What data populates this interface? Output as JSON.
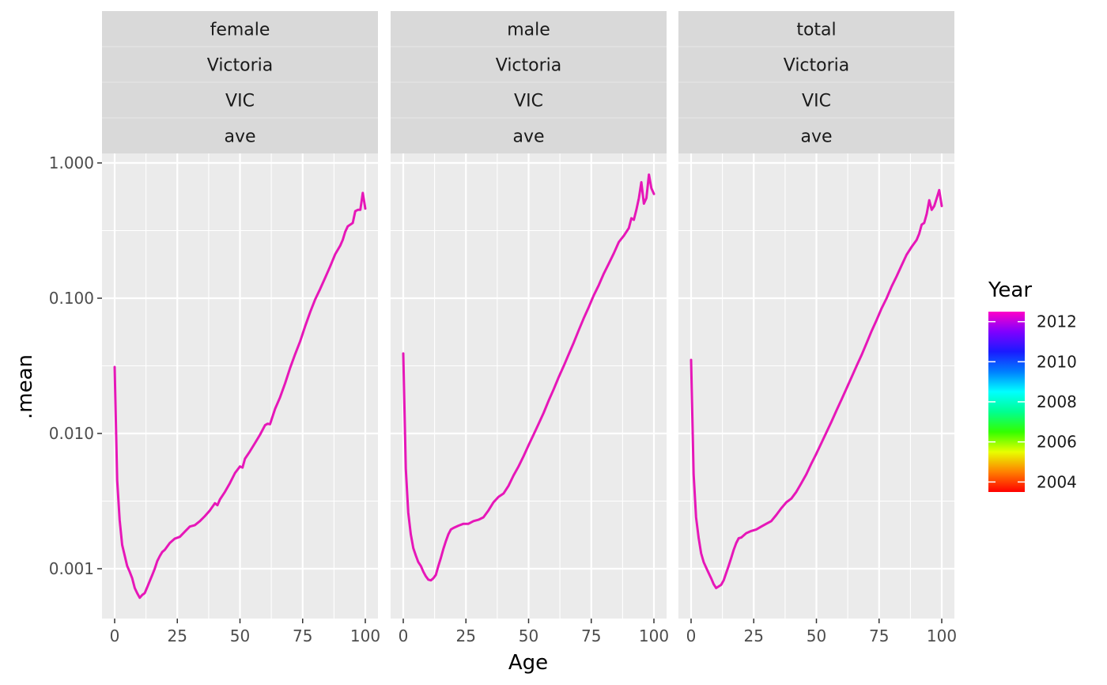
{
  "chart_data": {
    "type": "line",
    "xlabel": "Age",
    "ylabel": ".mean",
    "y_scale": "log10",
    "xlim": [
      0,
      100
    ],
    "ylim": [
      0.0004,
      1.0
    ],
    "x_ticks": [
      0,
      25,
      50,
      75,
      100
    ],
    "y_ticks": [
      0.001,
      0.01,
      0.1,
      1.0
    ],
    "y_tick_labels": [
      "0.001",
      "0.010",
      "0.100",
      "1.000"
    ],
    "grid": true,
    "legend": {
      "title": "Year",
      "position": "right",
      "type": "colorbar",
      "range": [
        2003.5,
        2012.5
      ],
      "ticks": [
        2004,
        2006,
        2008,
        2010,
        2012
      ],
      "colors": [
        "#ff0000",
        "#ff8000",
        "#e8ff00",
        "#33ff00",
        "#00ff90",
        "#00ffff",
        "#007fff",
        "#1a1aff",
        "#8000ff",
        "#ff00c8"
      ]
    },
    "panels": [
      {
        "strips": [
          "female",
          "Victoria",
          "VIC",
          "ave"
        ],
        "series": [
          {
            "color": "#e617b8",
            "points": [
              [
                0,
                0.031
              ],
              [
                1,
                0.0045
              ],
              [
                2,
                0.0023
              ],
              [
                3,
                0.0015
              ],
              [
                4,
                0.00125
              ],
              [
                5,
                0.00105
              ],
              [
                6,
                0.00095
              ],
              [
                7,
                0.00085
              ],
              [
                8,
                0.00072
              ],
              [
                9,
                0.00066
              ],
              [
                10,
                0.00061
              ],
              [
                11,
                0.00064
              ],
              [
                12,
                0.00066
              ],
              [
                13,
                0.00073
              ],
              [
                14,
                0.00081
              ],
              [
                15,
                0.0009
              ],
              [
                16,
                0.001
              ],
              [
                17,
                0.00114
              ],
              [
                18,
                0.00124
              ],
              [
                19,
                0.00133
              ],
              [
                20,
                0.00138
              ],
              [
                22,
                0.00155
              ],
              [
                24,
                0.00167
              ],
              [
                26,
                0.00172
              ],
              [
                28,
                0.00188
              ],
              [
                30,
                0.00205
              ],
              [
                32,
                0.0021
              ],
              [
                34,
                0.00225
              ],
              [
                36,
                0.00245
              ],
              [
                38,
                0.0027
              ],
              [
                40,
                0.00305
              ],
              [
                41,
                0.00295
              ],
              [
                42,
                0.00325
              ],
              [
                44,
                0.0037
              ],
              [
                46,
                0.0043
              ],
              [
                48,
                0.0051
              ],
              [
                50,
                0.0057
              ],
              [
                51,
                0.0056
              ],
              [
                52,
                0.0065
              ],
              [
                54,
                0.0074
              ],
              [
                56,
                0.0085
              ],
              [
                58,
                0.0098
              ],
              [
                60,
                0.0115
              ],
              [
                61,
                0.0118
              ],
              [
                62,
                0.0117
              ],
              [
                64,
                0.0152
              ],
              [
                66,
                0.0185
              ],
              [
                68,
                0.0235
              ],
              [
                70,
                0.0305
              ],
              [
                72,
                0.0385
              ],
              [
                74,
                0.048
              ],
              [
                76,
                0.062
              ],
              [
                78,
                0.079
              ],
              [
                80,
                0.098
              ],
              [
                82,
                0.117
              ],
              [
                84,
                0.142
              ],
              [
                86,
                0.172
              ],
              [
                88,
                0.212
              ],
              [
                90,
                0.245
              ],
              [
                91,
                0.27
              ],
              [
                92,
                0.31
              ],
              [
                93,
                0.34
              ],
              [
                94,
                0.35
              ],
              [
                95,
                0.36
              ],
              [
                96,
                0.44
              ],
              [
                97,
                0.45
              ],
              [
                98,
                0.45
              ],
              [
                99,
                0.6
              ],
              [
                100,
                0.46
              ]
            ]
          }
        ]
      },
      {
        "strips": [
          "male",
          "Victoria",
          "VIC",
          "ave"
        ],
        "series": [
          {
            "color": "#e617b8",
            "points": [
              [
                0,
                0.039
              ],
              [
                1,
                0.0055
              ],
              [
                2,
                0.0026
              ],
              [
                3,
                0.0018
              ],
              [
                4,
                0.00142
              ],
              [
                5,
                0.00125
              ],
              [
                6,
                0.00112
              ],
              [
                7,
                0.00105
              ],
              [
                8,
                0.00095
              ],
              [
                9,
                0.00088
              ],
              [
                10,
                0.00083
              ],
              [
                11,
                0.00082
              ],
              [
                12,
                0.00085
              ],
              [
                13,
                0.0009
              ],
              [
                14,
                0.00105
              ],
              [
                15,
                0.0012
              ],
              [
                16,
                0.0014
              ],
              [
                17,
                0.0016
              ],
              [
                18,
                0.0018
              ],
              [
                19,
                0.00195
              ],
              [
                20,
                0.002
              ],
              [
                22,
                0.00208
              ],
              [
                24,
                0.00215
              ],
              [
                26,
                0.00215
              ],
              [
                28,
                0.00225
              ],
              [
                30,
                0.0023
              ],
              [
                32,
                0.0024
              ],
              [
                34,
                0.0027
              ],
              [
                36,
                0.0031
              ],
              [
                38,
                0.0034
              ],
              [
                40,
                0.0036
              ],
              [
                42,
                0.0041
              ],
              [
                44,
                0.0049
              ],
              [
                46,
                0.0057
              ],
              [
                48,
                0.0068
              ],
              [
                50,
                0.0082
              ],
              [
                52,
                0.0098
              ],
              [
                54,
                0.0118
              ],
              [
                56,
                0.0142
              ],
              [
                58,
                0.0175
              ],
              [
                60,
                0.0212
              ],
              [
                62,
                0.026
              ],
              [
                64,
                0.0315
              ],
              [
                66,
                0.0385
              ],
              [
                68,
                0.047
              ],
              [
                70,
                0.058
              ],
              [
                72,
                0.071
              ],
              [
                74,
                0.086
              ],
              [
                76,
                0.105
              ],
              [
                78,
                0.125
              ],
              [
                80,
                0.152
              ],
              [
                82,
                0.18
              ],
              [
                84,
                0.215
              ],
              [
                86,
                0.26
              ],
              [
                88,
                0.29
              ],
              [
                90,
                0.33
              ],
              [
                91,
                0.39
              ],
              [
                92,
                0.38
              ],
              [
                93,
                0.45
              ],
              [
                94,
                0.55
              ],
              [
                95,
                0.72
              ],
              [
                96,
                0.5
              ],
              [
                97,
                0.55
              ],
              [
                98,
                0.82
              ],
              [
                99,
                0.65
              ],
              [
                100,
                0.59
              ]
            ]
          }
        ]
      },
      {
        "strips": [
          "total",
          "Victoria",
          "VIC",
          "ave"
        ],
        "series": [
          {
            "color": "#e617b8",
            "points": [
              [
                0,
                0.035
              ],
              [
                1,
                0.005
              ],
              [
                2,
                0.0024
              ],
              [
                3,
                0.0017
              ],
              [
                4,
                0.0013
              ],
              [
                5,
                0.00112
              ],
              [
                6,
                0.00102
              ],
              [
                7,
                0.00093
              ],
              [
                8,
                0.00085
              ],
              [
                9,
                0.00077
              ],
              [
                10,
                0.00072
              ],
              [
                11,
                0.00074
              ],
              [
                12,
                0.00076
              ],
              [
                13,
                0.00082
              ],
              [
                14,
                0.00093
              ],
              [
                15,
                0.00105
              ],
              [
                16,
                0.0012
              ],
              [
                17,
                0.00138
              ],
              [
                18,
                0.00155
              ],
              [
                19,
                0.00168
              ],
              [
                20,
                0.0017
              ],
              [
                22,
                0.00183
              ],
              [
                24,
                0.0019
              ],
              [
                26,
                0.00195
              ],
              [
                28,
                0.00205
              ],
              [
                30,
                0.00215
              ],
              [
                32,
                0.00225
              ],
              [
                34,
                0.0025
              ],
              [
                36,
                0.0028
              ],
              [
                38,
                0.0031
              ],
              [
                40,
                0.0033
              ],
              [
                42,
                0.0037
              ],
              [
                44,
                0.0043
              ],
              [
                46,
                0.005
              ],
              [
                48,
                0.006
              ],
              [
                50,
                0.0071
              ],
              [
                52,
                0.0085
              ],
              [
                54,
                0.0102
              ],
              [
                56,
                0.0122
              ],
              [
                58,
                0.0148
              ],
              [
                60,
                0.0178
              ],
              [
                62,
                0.0215
              ],
              [
                64,
                0.026
              ],
              [
                66,
                0.0315
              ],
              [
                68,
                0.038
              ],
              [
                70,
                0.0465
              ],
              [
                72,
                0.057
              ],
              [
                74,
                0.069
              ],
              [
                76,
                0.084
              ],
              [
                78,
                0.1
              ],
              [
                80,
                0.122
              ],
              [
                82,
                0.145
              ],
              [
                84,
                0.175
              ],
              [
                86,
                0.21
              ],
              [
                88,
                0.24
              ],
              [
                90,
                0.27
              ],
              [
                91,
                0.3
              ],
              [
                92,
                0.35
              ],
              [
                93,
                0.36
              ],
              [
                94,
                0.42
              ],
              [
                95,
                0.53
              ],
              [
                96,
                0.45
              ],
              [
                97,
                0.48
              ],
              [
                98,
                0.55
              ],
              [
                99,
                0.63
              ],
              [
                100,
                0.48
              ]
            ]
          }
        ]
      }
    ]
  }
}
